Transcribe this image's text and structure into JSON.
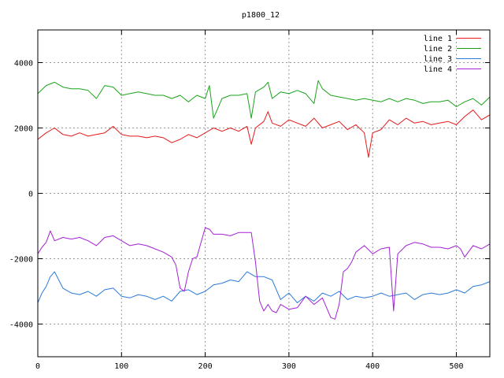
{
  "chart_data": {
    "type": "line",
    "title": "p1800_12",
    "xlabel": "",
    "ylabel": "",
    "xlim": [
      0,
      540
    ],
    "ylim": [
      -5000,
      5000
    ],
    "xticks": [
      0,
      100,
      200,
      300,
      400,
      500
    ],
    "yticks": [
      -4000,
      -2000,
      0,
      2000,
      4000
    ],
    "grid": true,
    "legend_position": "top-right",
    "series": [
      {
        "name": "line 1",
        "color": "#e41a1c",
        "x": [
          0,
          10,
          20,
          30,
          40,
          50,
          60,
          70,
          80,
          90,
          100,
          110,
          120,
          130,
          140,
          150,
          160,
          170,
          180,
          190,
          200,
          210,
          220,
          230,
          240,
          250,
          255,
          260,
          270,
          275,
          280,
          290,
          300,
          310,
          320,
          330,
          340,
          350,
          360,
          370,
          380,
          390,
          395,
          400,
          410,
          420,
          430,
          440,
          450,
          460,
          470,
          480,
          490,
          500,
          510,
          520,
          530,
          540
        ],
        "values": [
          1650,
          1850,
          2000,
          1800,
          1750,
          1850,
          1750,
          1800,
          1850,
          2050,
          1800,
          1750,
          1750,
          1700,
          1750,
          1700,
          1550,
          1650,
          1800,
          1700,
          1850,
          2000,
          1900,
          2000,
          1900,
          2050,
          1500,
          2000,
          2200,
          2500,
          2150,
          2050,
          2250,
          2150,
          2050,
          2300,
          2000,
          2100,
          2200,
          1950,
          2100,
          1850,
          1100,
          1850,
          1950,
          2250,
          2100,
          2300,
          2150,
          2200,
          2100,
          2150,
          2200,
          2100,
          2350,
          2550,
          2250,
          2400
        ]
      },
      {
        "name": "line 2",
        "color": "#1aa31a",
        "x": [
          0,
          10,
          20,
          30,
          40,
          50,
          60,
          70,
          80,
          90,
          100,
          110,
          120,
          130,
          140,
          150,
          160,
          170,
          180,
          190,
          200,
          205,
          210,
          220,
          230,
          240,
          250,
          255,
          260,
          270,
          275,
          280,
          290,
          300,
          310,
          320,
          330,
          335,
          340,
          350,
          360,
          370,
          380,
          390,
          400,
          410,
          420,
          430,
          440,
          450,
          460,
          470,
          480,
          490,
          500,
          510,
          520,
          530,
          540
        ],
        "values": [
          3050,
          3300,
          3400,
          3250,
          3200,
          3200,
          3150,
          2900,
          3300,
          3250,
          3000,
          3050,
          3100,
          3050,
          3000,
          3000,
          2900,
          3000,
          2800,
          3000,
          2900,
          3300,
          2300,
          2900,
          3000,
          3000,
          3050,
          2300,
          3100,
          3250,
          3400,
          2900,
          3100,
          3050,
          3150,
          3050,
          2750,
          3450,
          3200,
          3000,
          2950,
          2900,
          2850,
          2900,
          2850,
          2800,
          2900,
          2800,
          2900,
          2850,
          2750,
          2800,
          2800,
          2850,
          2650,
          2800,
          2900,
          2700,
          2950
        ]
      },
      {
        "name": "line 3",
        "color": "#2b7bd8",
        "x": [
          0,
          5,
          10,
          15,
          20,
          30,
          40,
          50,
          60,
          70,
          80,
          90,
          100,
          110,
          120,
          130,
          140,
          150,
          160,
          170,
          180,
          190,
          200,
          210,
          220,
          230,
          240,
          250,
          260,
          270,
          280,
          290,
          300,
          310,
          320,
          330,
          340,
          350,
          360,
          370,
          380,
          390,
          400,
          410,
          420,
          430,
          440,
          450,
          460,
          470,
          480,
          490,
          500,
          510,
          520,
          530,
          540
        ],
        "values": [
          -3350,
          -3050,
          -2850,
          -2550,
          -2400,
          -2900,
          -3050,
          -3100,
          -3000,
          -3150,
          -2950,
          -2900,
          -3150,
          -3200,
          -3100,
          -3150,
          -3250,
          -3150,
          -3300,
          -3000,
          -2950,
          -3100,
          -3000,
          -2800,
          -2750,
          -2650,
          -2700,
          -2400,
          -2550,
          -2550,
          -2650,
          -3250,
          -3050,
          -3350,
          -3150,
          -3300,
          -3050,
          -3150,
          -3000,
          -3250,
          -3150,
          -3200,
          -3150,
          -3050,
          -3150,
          -3100,
          -3050,
          -3250,
          -3100,
          -3050,
          -3100,
          -3050,
          -2950,
          -3050,
          -2850,
          -2800,
          -2700
        ]
      },
      {
        "name": "line 4",
        "color": "#a321d6",
        "x": [
          0,
          5,
          10,
          15,
          20,
          30,
          40,
          50,
          60,
          70,
          80,
          90,
          100,
          110,
          120,
          130,
          140,
          150,
          160,
          165,
          170,
          175,
          180,
          185,
          190,
          200,
          205,
          210,
          220,
          230,
          240,
          250,
          255,
          260,
          265,
          270,
          275,
          280,
          285,
          290,
          300,
          310,
          320,
          330,
          340,
          350,
          355,
          360,
          365,
          370,
          375,
          380,
          390,
          400,
          410,
          420,
          425,
          430,
          440,
          450,
          460,
          470,
          480,
          490,
          500,
          505,
          510,
          520,
          530,
          540
        ],
        "values": [
          -1850,
          -1650,
          -1500,
          -1150,
          -1450,
          -1350,
          -1400,
          -1350,
          -1450,
          -1600,
          -1350,
          -1300,
          -1450,
          -1600,
          -1550,
          -1600,
          -1700,
          -1800,
          -1950,
          -2200,
          -2900,
          -3000,
          -2400,
          -2000,
          -1950,
          -1050,
          -1100,
          -1250,
          -1250,
          -1300,
          -1200,
          -1200,
          -1200,
          -2100,
          -3300,
          -3600,
          -3400,
          -3600,
          -3650,
          -3400,
          -3550,
          -3500,
          -3150,
          -3400,
          -3200,
          -3800,
          -3850,
          -3400,
          -2400,
          -2300,
          -2100,
          -1800,
          -1600,
          -1850,
          -1700,
          -1650,
          -3600,
          -1850,
          -1600,
          -1500,
          -1550,
          -1650,
          -1650,
          -1700,
          -1600,
          -1700,
          -1950,
          -1600,
          -1700,
          -1550
        ]
      }
    ]
  }
}
